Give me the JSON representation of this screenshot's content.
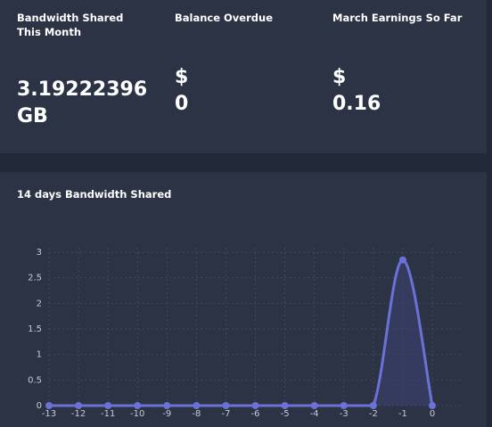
{
  "stats": {
    "bandwidth": {
      "label": "Bandwidth Shared This Month",
      "value": "3.19222396 GB"
    },
    "balance": {
      "label": "Balance Overdue",
      "value": "$ 0"
    },
    "earnings": {
      "label": "March Earnings So Far",
      "value": "$ 0.16"
    }
  },
  "chart_data": {
    "type": "area",
    "title": "14 days Bandwidth Shared",
    "xlabel": "",
    "ylabel": "",
    "x": [
      -13,
      -12,
      -11,
      -10,
      -9,
      -8,
      -7,
      -6,
      -5,
      -4,
      -3,
      -2,
      -1,
      0
    ],
    "series": [
      {
        "values": [
          0,
          0,
          0,
          0,
          0,
          0,
          0,
          0,
          0,
          0,
          0,
          0,
          2.85,
          0
        ]
      }
    ],
    "yticks": [
      0,
      0.5,
      1,
      1.5,
      2,
      2.5,
      3
    ],
    "ylim": [
      0,
      3
    ],
    "grid": true,
    "legend": "none",
    "line_color": "#6b72d6",
    "fill_color": "#3a4170"
  }
}
